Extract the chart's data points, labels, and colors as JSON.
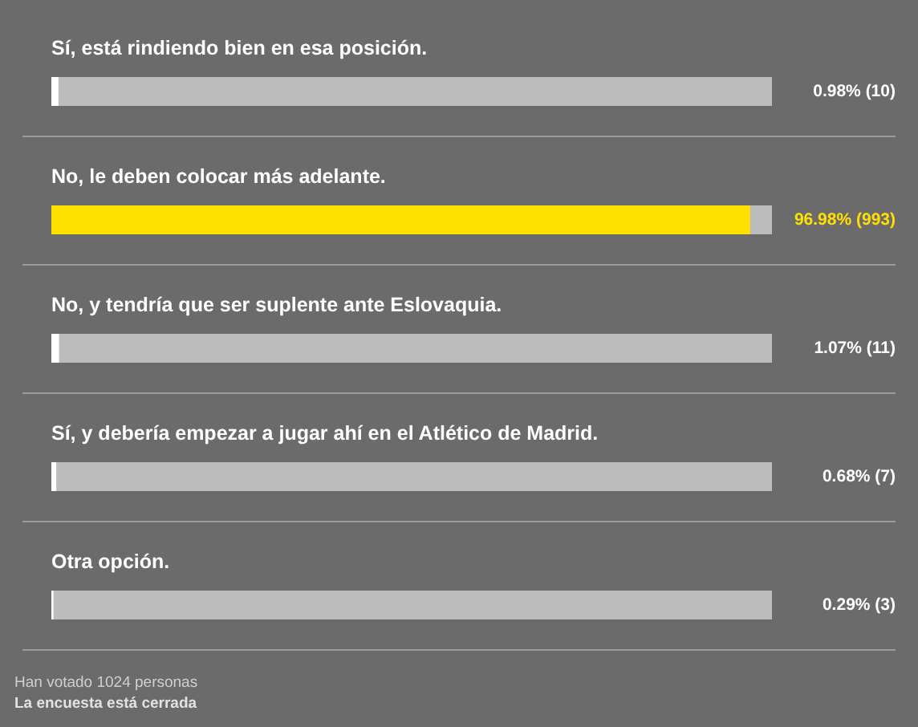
{
  "chart_data": {
    "type": "bar",
    "orientation": "horizontal",
    "categories": [
      "Sí, está rindiendo bien en esa posición.",
      "No, le deben colocar más adelante.",
      "No, y tendría que ser suplente ante Eslovaquia.",
      "Sí, y debería empezar a jugar ahí en el Atlético de Madrid.",
      "Otra opción."
    ],
    "values": [
      0.98,
      96.98,
      1.07,
      0.68,
      0.29
    ],
    "colors": [
      "#ffffff",
      "#ffe000",
      "#ffffff",
      "#ffffff",
      "#ffffff"
    ],
    "value_labels": [
      "0.98% (10)",
      "96.98% (993)",
      "1.07% (11)",
      "0.68% (7)",
      "0.29% (3)"
    ],
    "tick_labels": "y",
    "grid": "y",
    "annotations": [
      "Han votado 1024 personas",
      "La encuesta está cerrada"
    ]
  }
}
